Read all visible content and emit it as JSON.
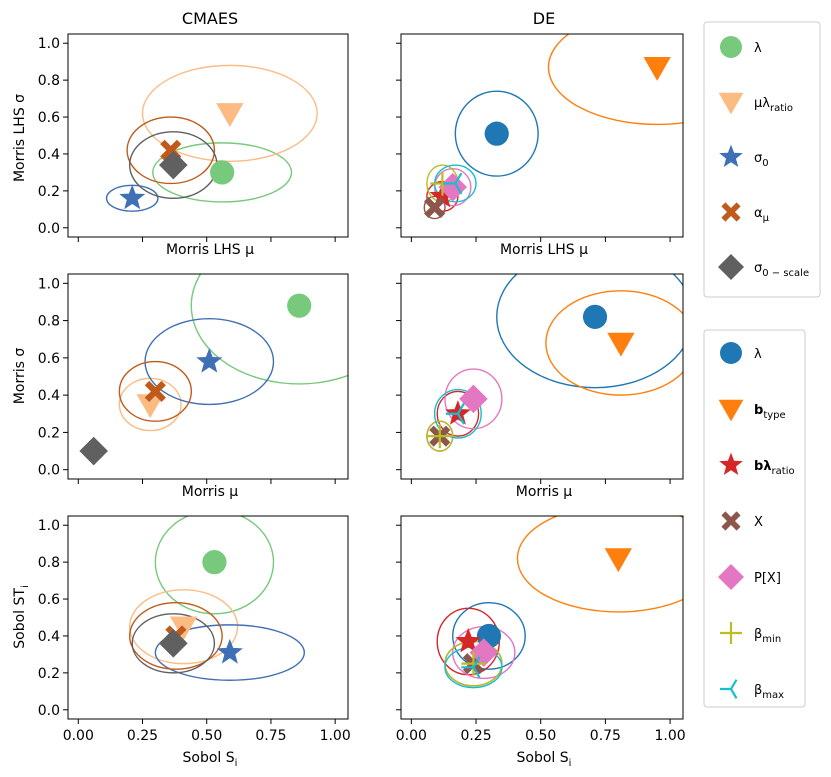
{
  "figure": {
    "column_titles": [
      "CMAES",
      "DE"
    ],
    "row_labels": {
      "r0": {
        "xlabel": "Morris LHS  μ",
        "ylabel": "Morris LHS σ"
      },
      "r1": {
        "xlabel": "Morris  μ",
        "ylabel": "Morris  σ"
      },
      "r2": {
        "xlabel": "Sobol  S",
        "xlabel_sub": "i",
        "ylabel": "Sobol ST",
        "ylabel_sub": "i"
      }
    },
    "x_ticks": [
      "0.00",
      "0.25",
      "0.50",
      "0.75",
      "1.00"
    ],
    "y_ticks": [
      "0.0",
      "0.2",
      "0.4",
      "0.6",
      "0.8",
      "1.0"
    ]
  },
  "legends": {
    "cmaes": [
      {
        "label": "λ",
        "sub": "",
        "marker": "circle",
        "color": "#77c97b",
        "alpha": 1
      },
      {
        "label": "μλ",
        "sub": "ratio",
        "marker": "triangle-down",
        "color": "#fdbb84",
        "alpha": 1
      },
      {
        "label": "σ",
        "sub": "0",
        "marker": "star",
        "color": "#3f6fb5",
        "alpha": 1
      },
      {
        "label": "α",
        "sub": "μ",
        "marker": "x",
        "color": "#c05a1a",
        "alpha": 1
      },
      {
        "label": "σ",
        "sub": "0 − scale",
        "marker": "diamond",
        "color": "#606060",
        "alpha": 1
      }
    ],
    "de": [
      {
        "label": "λ",
        "sub": "",
        "marker": "circle",
        "color": "#1f77b4"
      },
      {
        "label": "b",
        "sub": "type",
        "bold": true,
        "marker": "triangle-down",
        "color": "#ff7f0e"
      },
      {
        "label": "bλ",
        "sub": "ratio",
        "bold": true,
        "marker": "star",
        "color": "#d62728"
      },
      {
        "label": "X",
        "sub": "",
        "marker": "x",
        "color": "#8c564b"
      },
      {
        "label": "P[X]",
        "sub": "",
        "marker": "diamond",
        "color": "#e377c2"
      },
      {
        "label": "β",
        "sub": "min",
        "marker": "plus",
        "color": "#bcbd22"
      },
      {
        "label": "β",
        "sub": "max",
        "marker": "tri-left",
        "color": "#17becf"
      }
    ]
  },
  "chart_data": [
    {
      "type": "scatter",
      "id": "cmaes-morris-lhs",
      "title": "CMAES",
      "xlabel": "Morris LHS μ",
      "ylabel": "Morris LHS σ",
      "xlim": [
        -0.04,
        1.05
      ],
      "ylim": [
        -0.05,
        1.05
      ],
      "show_xticklabels": false,
      "points": [
        {
          "name": "λ",
          "x": 0.56,
          "y": 0.3,
          "ex": 0.27,
          "ey": 0.16
        },
        {
          "name": "μλ_ratio",
          "x": 0.59,
          "y": 0.62,
          "ex": 0.34,
          "ey": 0.26
        },
        {
          "name": "σ_0",
          "x": 0.21,
          "y": 0.16,
          "ex": 0.1,
          "ey": 0.07
        },
        {
          "name": "α_μ",
          "x": 0.36,
          "y": 0.42,
          "ex": 0.17,
          "ey": 0.18
        },
        {
          "name": "σ_0-scale",
          "x": 0.37,
          "y": 0.34,
          "ex": 0.17,
          "ey": 0.18
        }
      ]
    },
    {
      "type": "scatter",
      "id": "cmaes-morris",
      "xlabel": "Morris μ",
      "ylabel": "Morris σ",
      "xlim": [
        -0.04,
        1.05
      ],
      "ylim": [
        -0.05,
        1.05
      ],
      "show_xticklabels": false,
      "points": [
        {
          "name": "λ",
          "x": 0.86,
          "y": 0.88,
          "ex": 0.42,
          "ey": 0.42
        },
        {
          "name": "μλ_ratio",
          "x": 0.28,
          "y": 0.35,
          "ex": 0.12,
          "ey": 0.14
        },
        {
          "name": "σ_0",
          "x": 0.51,
          "y": 0.58,
          "ex": 0.25,
          "ey": 0.23
        },
        {
          "name": "α_μ",
          "x": 0.3,
          "y": 0.42,
          "ex": 0.14,
          "ey": 0.16
        },
        {
          "name": "σ_0-scale",
          "x": 0.06,
          "y": 0.1,
          "ex": 0.01,
          "ey": 0.015
        }
      ]
    },
    {
      "type": "scatter",
      "id": "cmaes-sobol",
      "xlabel": "Sobol S_i",
      "ylabel": "Sobol ST_i",
      "xlim": [
        -0.04,
        1.05
      ],
      "ylim": [
        -0.05,
        1.05
      ],
      "show_xticklabels": true,
      "points": [
        {
          "name": "λ",
          "x": 0.53,
          "y": 0.8,
          "ex": 0.23,
          "ey": 0.28
        },
        {
          "name": "μλ_ratio",
          "x": 0.41,
          "y": 0.45,
          "ex": 0.21,
          "ey": 0.2
        },
        {
          "name": "σ_0",
          "x": 0.59,
          "y": 0.31,
          "ex": 0.29,
          "ey": 0.15
        },
        {
          "name": "α_μ",
          "x": 0.38,
          "y": 0.4,
          "ex": 0.18,
          "ey": 0.18
        },
        {
          "name": "σ_0-scale",
          "x": 0.37,
          "y": 0.36,
          "ex": 0.16,
          "ey": 0.16
        }
      ]
    },
    {
      "type": "scatter",
      "id": "de-morris-lhs",
      "title": "DE",
      "xlabel": "Morris LHS μ",
      "ylabel": "",
      "xlim": [
        -0.04,
        1.05
      ],
      "ylim": [
        -0.05,
        1.05
      ],
      "show_xticklabels": false,
      "show_yticklabels": false,
      "points": [
        {
          "name": "λ",
          "x": 0.33,
          "y": 0.51,
          "ex": 0.16,
          "ey": 0.23
        },
        {
          "name": "b_type",
          "x": 0.95,
          "y": 0.87,
          "ex": 0.42,
          "ey": 0.31
        },
        {
          "name": "bλ_ratio",
          "x": 0.12,
          "y": 0.17,
          "ex": 0.06,
          "ey": 0.08
        },
        {
          "name": "X",
          "x": 0.09,
          "y": 0.11,
          "ex": 0.04,
          "ey": 0.06
        },
        {
          "name": "P[X]",
          "x": 0.16,
          "y": 0.22,
          "ex": 0.07,
          "ey": 0.1
        },
        {
          "name": "β_min",
          "x": 0.12,
          "y": 0.24,
          "ex": 0.06,
          "ey": 0.1
        },
        {
          "name": "β_max",
          "x": 0.17,
          "y": 0.24,
          "ex": 0.08,
          "ey": 0.1
        }
      ]
    },
    {
      "type": "scatter",
      "id": "de-morris",
      "xlabel": "Morris μ",
      "ylabel": "",
      "xlim": [
        -0.04,
        1.05
      ],
      "ylim": [
        -0.05,
        1.05
      ],
      "show_xticklabels": false,
      "show_yticklabels": false,
      "points": [
        {
          "name": "λ",
          "x": 0.71,
          "y": 0.82,
          "ex": 0.38,
          "ey": 0.38
        },
        {
          "name": "b_type",
          "x": 0.81,
          "y": 0.68,
          "ex": 0.29,
          "ey": 0.28
        },
        {
          "name": "bλ_ratio",
          "x": 0.18,
          "y": 0.3,
          "ex": 0.08,
          "ey": 0.12
        },
        {
          "name": "X",
          "x": 0.11,
          "y": 0.18,
          "ex": 0.05,
          "ey": 0.08
        },
        {
          "name": "P[X]",
          "x": 0.24,
          "y": 0.38,
          "ex": 0.11,
          "ey": 0.16
        },
        {
          "name": "β_min",
          "x": 0.11,
          "y": 0.18,
          "ex": 0.05,
          "ey": 0.08
        },
        {
          "name": "β_max",
          "x": 0.18,
          "y": 0.3,
          "ex": 0.09,
          "ey": 0.13
        }
      ]
    },
    {
      "type": "scatter",
      "id": "de-sobol",
      "xlabel": "Sobol S_i",
      "ylabel": "",
      "xlim": [
        -0.04,
        1.05
      ],
      "ylim": [
        -0.05,
        1.05
      ],
      "show_xticklabels": true,
      "show_yticklabels": false,
      "points": [
        {
          "name": "λ",
          "x": 0.3,
          "y": 0.4,
          "ex": 0.14,
          "ey": 0.18
        },
        {
          "name": "b_type",
          "x": 0.8,
          "y": 0.82,
          "ex": 0.39,
          "ey": 0.29
        },
        {
          "name": "bλ_ratio",
          "x": 0.22,
          "y": 0.37,
          "ex": 0.12,
          "ey": 0.18
        },
        {
          "name": "X",
          "x": 0.24,
          "y": 0.25,
          "ex": 0.11,
          "ey": 0.12
        },
        {
          "name": "P[X]",
          "x": 0.28,
          "y": 0.31,
          "ex": 0.12,
          "ey": 0.14
        },
        {
          "name": "β_min",
          "x": 0.24,
          "y": 0.25,
          "ex": 0.11,
          "ey": 0.12
        },
        {
          "name": "β_max",
          "x": 0.24,
          "y": 0.23,
          "ex": 0.11,
          "ey": 0.11
        }
      ]
    }
  ]
}
